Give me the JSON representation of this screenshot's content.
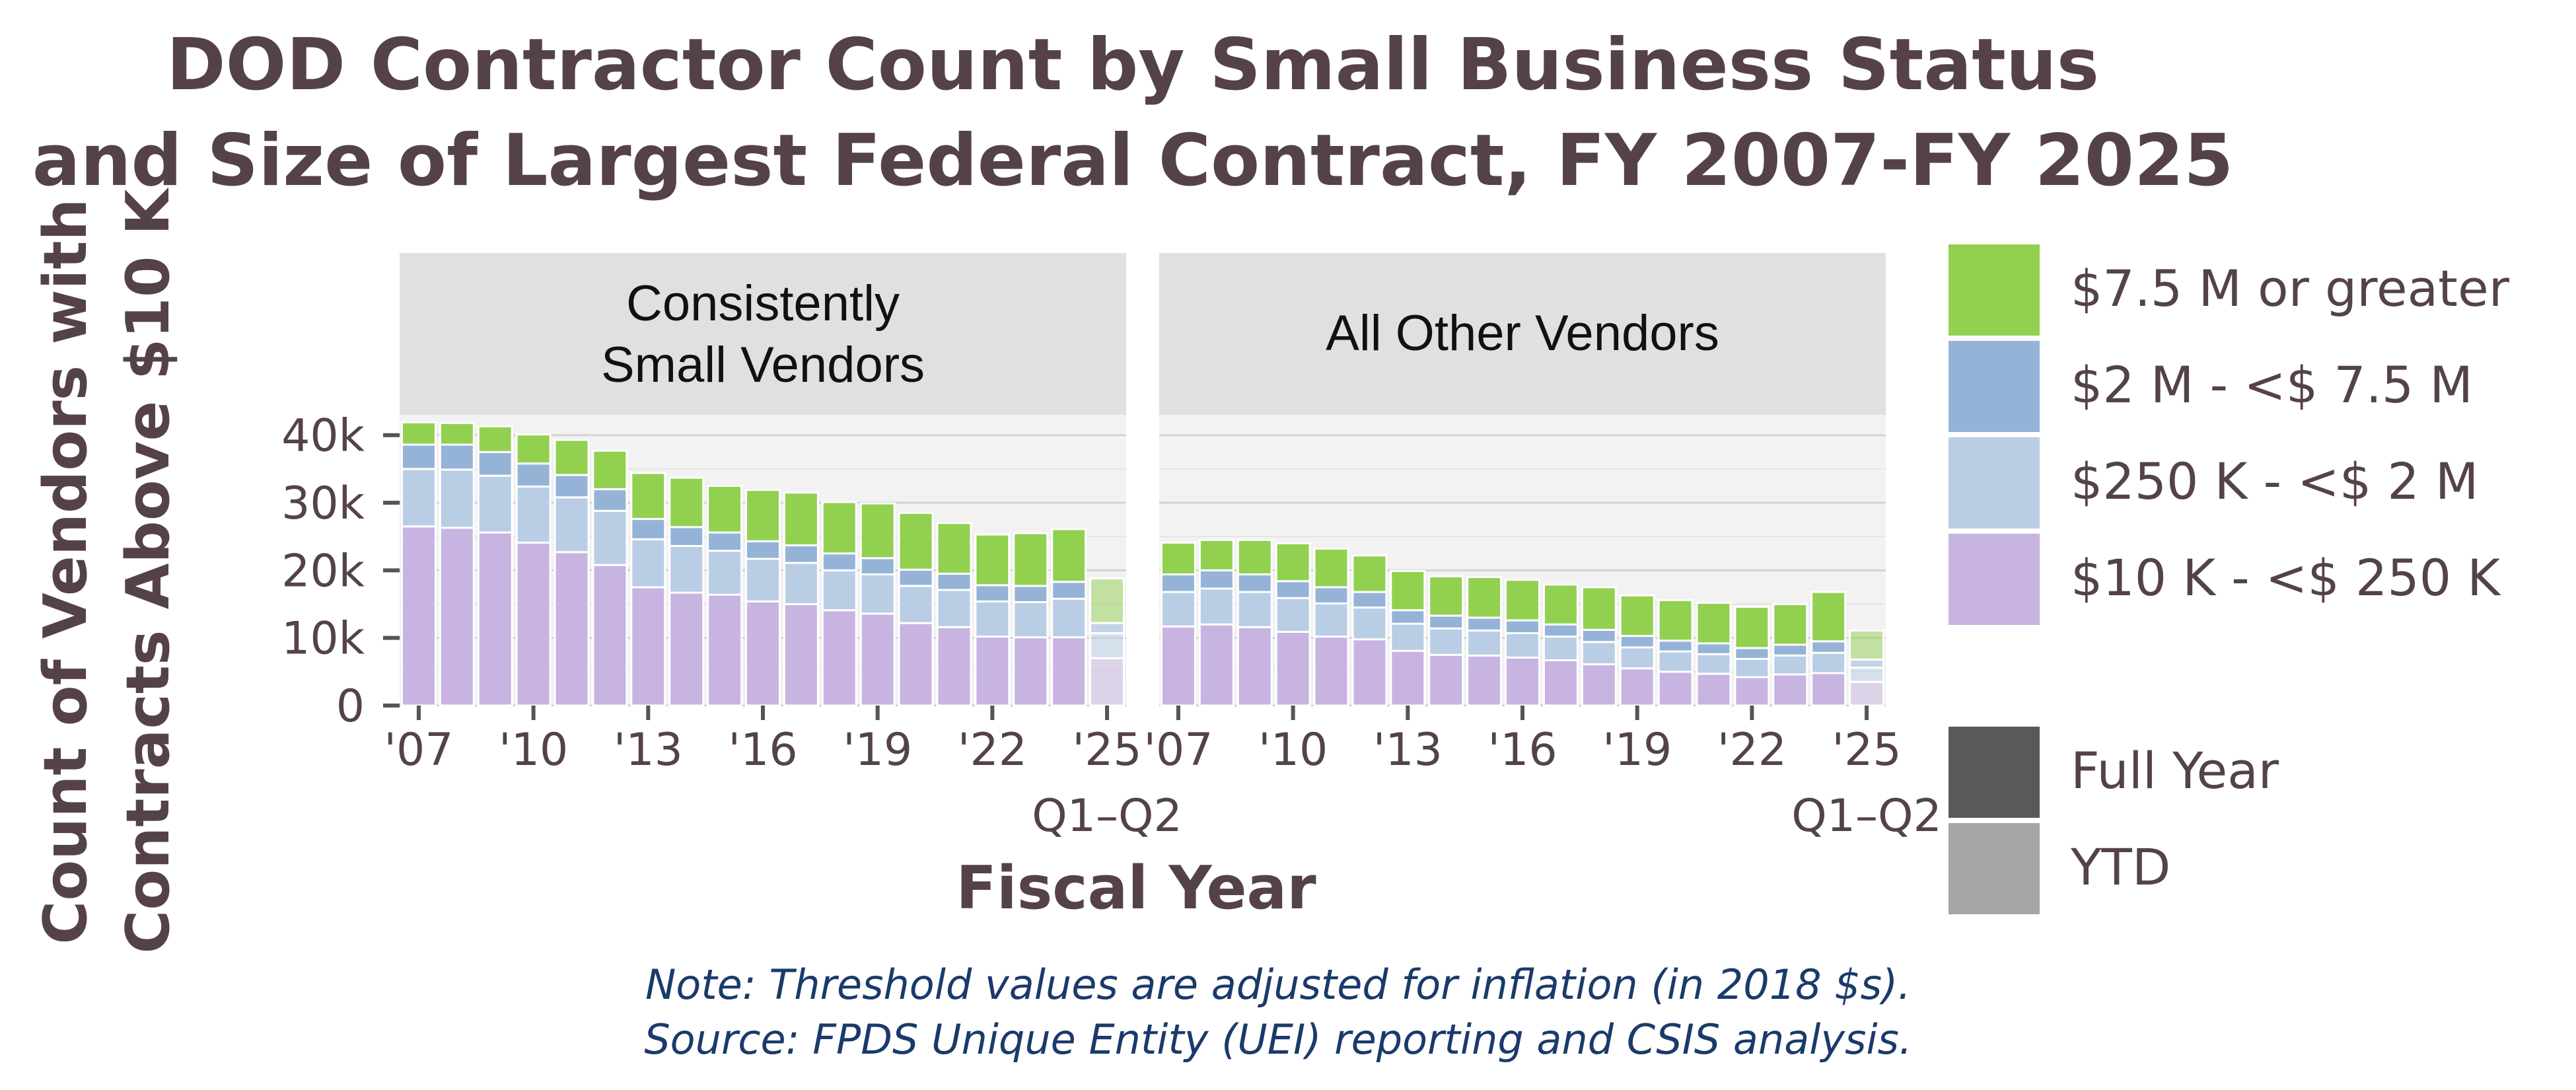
{
  "title_line1": "DOD Contractor Count by Small Business Status",
  "title_line2": "and Size of Largest Federal Contract, FY 2007-FY 2025",
  "ylabel_line1": "Count of Vendors with",
  "ylabel_line2": "Contracts Above $10 K",
  "xlabel": "Fiscal Year",
  "note_line1": "Note: Threshold values are adjusted for inflation (in 2018 $s).",
  "note_line2": "Source: FPDS Unique Entity (UEI) reporting and CSIS analysis.",
  "colors": {
    "ge_7_5m": "#92d050",
    "2m_7_5m": "#95b3d7",
    "250k_2m": "#b9cde5",
    "10k_250k": "#c8b4e0",
    "panel_bg": "#f2f2f2",
    "strip_bg": "#e0e0e0",
    "full_year": "#595959",
    "ytd": "#a6a6a6"
  },
  "chart_data": {
    "type": "bar",
    "stacked": true,
    "faceted": true,
    "x": [
      "2007",
      "2008",
      "2009",
      "2010",
      "2011",
      "2012",
      "2013",
      "2014",
      "2015",
      "2016",
      "2017",
      "2018",
      "2019",
      "2020",
      "2021",
      "2022",
      "2023",
      "2024",
      "2025"
    ],
    "x_tick_labels": [
      "'07",
      "'10",
      "'13",
      "'16",
      "'19",
      "'22",
      "'25"
    ],
    "x_tick_years": [
      "2007",
      "2010",
      "2013",
      "2016",
      "2019",
      "2022",
      "2025"
    ],
    "x_sublabel": "Q1–Q2",
    "ylim": [
      0,
      43000
    ],
    "y_ticks": [
      0,
      10000,
      20000,
      30000,
      40000
    ],
    "y_tick_labels": [
      "0",
      "10k",
      "20k",
      "30k",
      "40k"
    ],
    "grid": true,
    "legend_position": "right",
    "legend": {
      "size": [
        "$7.5 M or greater",
        "$2 M - <$ 7.5 M",
        "$250 K - <$ 2 M",
        "$10 K - <$ 250 K"
      ],
      "period": [
        "Full Year",
        "YTD"
      ]
    },
    "period_by_year": [
      "Full Year",
      "Full Year",
      "Full Year",
      "Full Year",
      "Full Year",
      "Full Year",
      "Full Year",
      "Full Year",
      "Full Year",
      "Full Year",
      "Full Year",
      "Full Year",
      "Full Year",
      "Full Year",
      "Full Year",
      "Full Year",
      "Full Year",
      "Full Year",
      "YTD"
    ],
    "panels": [
      {
        "name": "Consistently Small Vendors",
        "strip_line1": "Consistently",
        "strip_line2": "Small Vendors",
        "series": [
          {
            "name": "$10 K - <$ 250 K",
            "values": [
              26500,
              26300,
              25600,
              24100,
              22700,
              20800,
              17500,
              16700,
              16400,
              15400,
              15000,
              14100,
              13600,
              12200,
              11600,
              10200,
              10100,
              10100,
              7000
            ]
          },
          {
            "name": "$250 K - <$ 2 M",
            "values": [
              8500,
              8600,
              8400,
              8300,
              8100,
              8000,
              7100,
              6900,
              6500,
              6300,
              6100,
              5900,
              5800,
              5500,
              5500,
              5200,
              5200,
              5700,
              3700
            ]
          },
          {
            "name": "$2 M - <$ 7.5 M",
            "values": [
              3600,
              3700,
              3500,
              3400,
              3300,
              3200,
              3000,
              2800,
              2700,
              2600,
              2600,
              2500,
              2400,
              2400,
              2400,
              2400,
              2400,
              2500,
              1500
            ]
          },
          {
            "name": "$7.5 M or greater",
            "values": [
              3300,
              3200,
              3800,
              4300,
              5200,
              5700,
              6800,
              7300,
              6900,
              7600,
              7800,
              7600,
              8100,
              8400,
              7500,
              7500,
              7800,
              7800,
              6600
            ]
          }
        ]
      },
      {
        "name": "All Other Vendors",
        "strip_line1": "All Other Vendors",
        "series": [
          {
            "name": "$10 K - <$ 250 K",
            "values": [
              11700,
              12000,
              11600,
              10900,
              10200,
              9800,
              8100,
              7500,
              7400,
              7100,
              6700,
              6100,
              5500,
              5000,
              4700,
              4200,
              4600,
              4800,
              3500
            ]
          },
          {
            "name": "$250 K - <$ 2 M",
            "values": [
              5100,
              5300,
              5200,
              5000,
              4900,
              4700,
              4000,
              3900,
              3700,
              3600,
              3500,
              3300,
              3100,
              3000,
              2900,
              2700,
              2800,
              3000,
              2100
            ]
          },
          {
            "name": "$2 M - <$ 7.5 M",
            "values": [
              2600,
              2700,
              2600,
              2500,
              2400,
              2300,
              2000,
              1900,
              1900,
              1900,
              1800,
              1800,
              1700,
              1600,
              1600,
              1600,
              1600,
              1700,
              1200
            ]
          },
          {
            "name": "$7.5 M or greater",
            "values": [
              4700,
              4500,
              5100,
              5600,
              5700,
              5400,
              5800,
              5800,
              6000,
              6000,
              5900,
              6300,
              6000,
              6000,
              6000,
              6100,
              6000,
              7300,
              4300
            ]
          }
        ]
      }
    ]
  }
}
